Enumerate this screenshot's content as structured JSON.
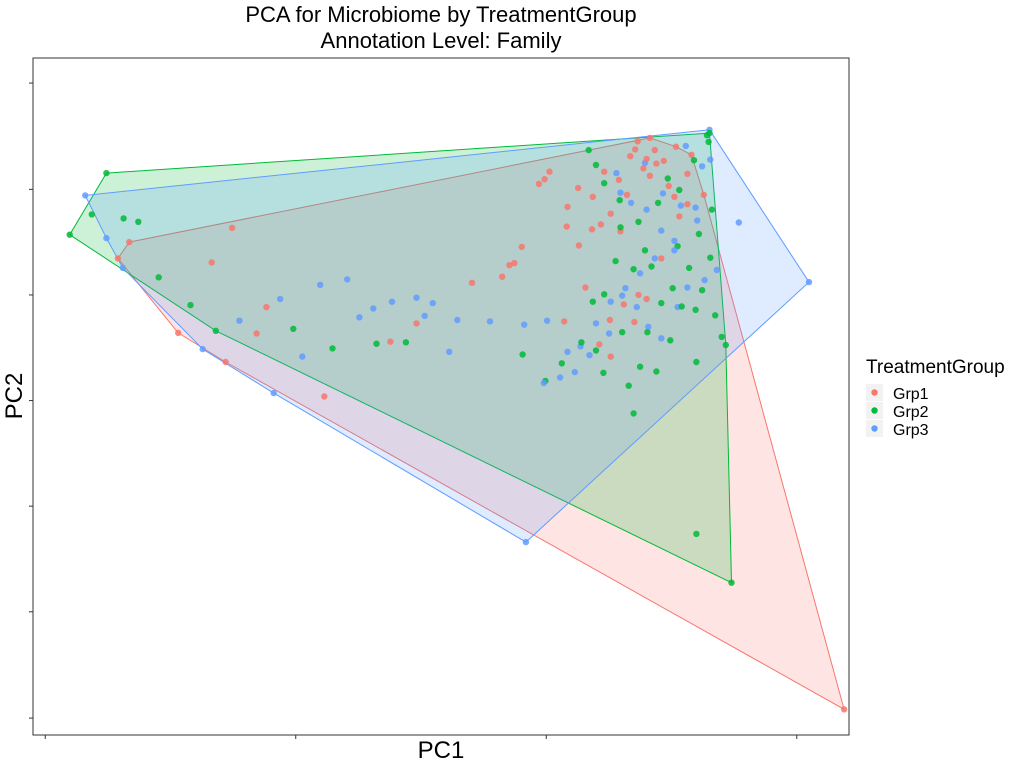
{
  "chart_data": {
    "type": "scatter",
    "title": "PCA for Microbiome by TreatmentGroup",
    "subtitle": "Annotation Level: Family",
    "xlabel": "PC1",
    "ylabel": "PC2",
    "xlim": [
      0,
      1000
    ],
    "ylim": [
      0,
      1000
    ],
    "x_tick_values": [
      15,
      322,
      629,
      936
    ],
    "y_tick_values": [
      25,
      182,
      338,
      494,
      650,
      806,
      963
    ],
    "tick_labels_shown": false,
    "grid": false,
    "hulls": true,
    "legend": {
      "title": "TreatmentGroup",
      "position": "right",
      "entries": [
        "Grp1",
        "Grp2",
        "Grp3"
      ]
    },
    "series": [
      {
        "name": "Grp1",
        "color": "#F8766D",
        "points": [
          [
            994,
            38
          ],
          [
            236,
            551
          ],
          [
            178,
            594
          ],
          [
            104,
            704
          ],
          [
            118,
            728
          ],
          [
            244,
            749
          ],
          [
            219,
            698
          ],
          [
            286,
            632
          ],
          [
            274,
            593
          ],
          [
            357,
            500
          ],
          [
            438,
            581
          ],
          [
            470,
            608
          ],
          [
            538,
            668
          ],
          [
            575,
            677
          ],
          [
            590,
            697
          ],
          [
            620,
            814
          ],
          [
            627,
            821
          ],
          [
            633,
            832
          ],
          [
            654,
            751
          ],
          [
            668,
            808
          ],
          [
            686,
            795
          ],
          [
            696,
            754
          ],
          [
            708,
            770
          ],
          [
            720,
            744
          ],
          [
            728,
            798
          ],
          [
            732,
            855
          ],
          [
            738,
            865
          ],
          [
            748,
            837
          ],
          [
            756,
            826
          ],
          [
            762,
            864
          ],
          [
            764,
            844
          ],
          [
            773,
            848
          ],
          [
            779,
            811
          ],
          [
            786,
            795
          ],
          [
            792,
            766
          ],
          [
            807,
            857
          ],
          [
            584,
            694
          ],
          [
            599,
            721
          ],
          [
            655,
            780
          ],
          [
            677,
            661
          ],
          [
            694,
            577
          ],
          [
            707,
            613
          ],
          [
            724,
            636
          ],
          [
            742,
            650
          ],
          [
            752,
            644
          ],
          [
            718,
            820
          ],
          [
            700,
            832
          ],
          [
            685,
            747
          ],
          [
            669,
            723
          ],
          [
            651,
            611
          ],
          [
            708,
            559
          ],
          [
            737,
            610
          ],
          [
            770,
            704
          ],
          [
            802,
            829
          ],
          [
            802,
            784
          ],
          [
            822,
            798
          ],
          [
            788,
            869
          ],
          [
            756,
            882
          ],
          [
            752,
            851
          ],
          [
            741,
            877
          ]
        ]
      },
      {
        "name": "Grp2",
        "color": "#00BA38",
        "points": [
          [
            856,
            225
          ],
          [
            813,
            297
          ],
          [
            45,
            739
          ],
          [
            72,
            769
          ],
          [
            90,
            830
          ],
          [
            129,
            758
          ],
          [
            111,
            763
          ],
          [
            154,
            676
          ],
          [
            193,
            635
          ],
          [
            224,
            597
          ],
          [
            319,
            600
          ],
          [
            367,
            571
          ],
          [
            421,
            578
          ],
          [
            457,
            580
          ],
          [
            600,
            562
          ],
          [
            628,
            523
          ],
          [
            648,
            549
          ],
          [
            672,
            580
          ],
          [
            690,
            568
          ],
          [
            699,
            535
          ],
          [
            722,
            595
          ],
          [
            730,
            516
          ],
          [
            736,
            475
          ],
          [
            744,
            544
          ],
          [
            753,
            595
          ],
          [
            764,
            537
          ],
          [
            781,
            583
          ],
          [
            795,
            633
          ],
          [
            812,
            628
          ],
          [
            813,
            551
          ],
          [
            820,
            657
          ],
          [
            830,
            705
          ],
          [
            836,
            620
          ],
          [
            844,
            588
          ],
          [
            849,
            576
          ],
          [
            790,
            722
          ],
          [
            784,
            660
          ],
          [
            770,
            638
          ],
          [
            758,
            692
          ],
          [
            750,
            716
          ],
          [
            736,
            688
          ],
          [
            720,
            750
          ],
          [
            719,
            790
          ],
          [
            700,
            815
          ],
          [
            690,
            842
          ],
          [
            681,
            864
          ],
          [
            804,
            690
          ],
          [
            816,
            740
          ],
          [
            832,
            776
          ],
          [
            778,
            822
          ],
          [
            792,
            805
          ],
          [
            826,
            886
          ],
          [
            829,
            889
          ],
          [
            828,
            876
          ],
          [
            810,
            849
          ],
          [
            766,
            786
          ],
          [
            742,
            758
          ],
          [
            714,
            700
          ],
          [
            700,
            651
          ],
          [
            686,
            640
          ]
        ]
      },
      {
        "name": "Grp3",
        "color": "#619CFF",
        "points": [
          [
            604,
            285
          ],
          [
            64,
            797
          ],
          [
            90,
            734
          ],
          [
            110,
            690
          ],
          [
            208,
            570
          ],
          [
            253,
            612
          ],
          [
            303,
            644
          ],
          [
            352,
            665
          ],
          [
            385,
            673
          ],
          [
            417,
            630
          ],
          [
            480,
            619
          ],
          [
            520,
            613
          ],
          [
            560,
            611
          ],
          [
            602,
            606
          ],
          [
            630,
            612
          ],
          [
            655,
            566
          ],
          [
            671,
            574
          ],
          [
            690,
            608
          ],
          [
            708,
            640
          ],
          [
            722,
            649
          ],
          [
            740,
            632
          ],
          [
            754,
            603
          ],
          [
            770,
            586
          ],
          [
            790,
            632
          ],
          [
            802,
            661
          ],
          [
            823,
            672
          ],
          [
            838,
            687
          ],
          [
            786,
            730
          ],
          [
            770,
            745
          ],
          [
            752,
            776
          ],
          [
            733,
            786
          ],
          [
            720,
            801
          ],
          [
            715,
            830
          ],
          [
            750,
            845
          ],
          [
            772,
            800
          ],
          [
            794,
            782
          ],
          [
            814,
            760
          ],
          [
            820,
            840
          ],
          [
            830,
            850
          ],
          [
            800,
            870
          ],
          [
            829,
            894
          ],
          [
            865,
            757
          ],
          [
            951,
            669
          ],
          [
            812,
            779
          ],
          [
            786,
            716
          ],
          [
            762,
            704
          ],
          [
            744,
            682
          ],
          [
            726,
            660
          ],
          [
            706,
            593
          ],
          [
            682,
            561
          ],
          [
            664,
            536
          ],
          [
            646,
            528
          ],
          [
            626,
            520
          ],
          [
            510,
            566
          ],
          [
            490,
            638
          ],
          [
            470,
            646
          ],
          [
            440,
            640
          ],
          [
            400,
            617
          ],
          [
            330,
            559
          ],
          [
            295,
            505
          ]
        ]
      }
    ]
  }
}
